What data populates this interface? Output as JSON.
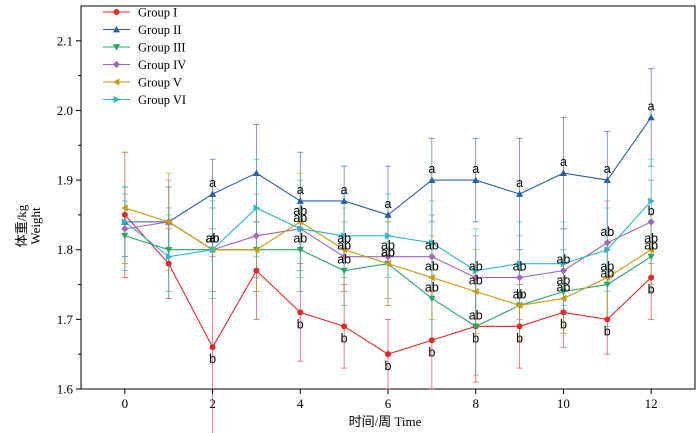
{
  "chart_data": {
    "type": "line",
    "xlabel": "时间/周 Time",
    "ylabel_line1": "体重/kg",
    "ylabel_line2": "Weight",
    "xlim": [
      -1,
      13
    ],
    "ylim": [
      1.6,
      2.15
    ],
    "xticks": [
      0,
      2,
      4,
      6,
      8,
      10,
      12
    ],
    "yticks": [
      1.6,
      1.7,
      1.8,
      1.9,
      2.0,
      2.1
    ],
    "ytick_labels": [
      "1.6",
      "1.7",
      "1.8",
      "1.9",
      "2.0",
      "2.1"
    ],
    "x": [
      0,
      1,
      2,
      3,
      4,
      5,
      6,
      7,
      8,
      9,
      10,
      11,
      12
    ],
    "legend_position": "top-left",
    "grid": false,
    "series": [
      {
        "name": "Group I",
        "color": "#e8292c",
        "marker": "circle",
        "values": [
          1.85,
          1.78,
          1.66,
          1.77,
          1.71,
          1.69,
          1.65,
          1.67,
          1.69,
          1.69,
          1.71,
          1.7,
          1.76
        ],
        "errors": [
          0.09,
          0.05,
          0.13,
          0.07,
          0.07,
          0.06,
          0.05,
          0.07,
          0.08,
          0.06,
          0.05,
          0.05,
          0.06
        ],
        "labels": [
          "",
          "",
          "b",
          "",
          "b",
          "b",
          "b",
          "b",
          "b",
          "b",
          "b",
          "b",
          "b"
        ]
      },
      {
        "name": "Group II",
        "color": "#2d5fa8",
        "marker": "triangle-up",
        "values": [
          1.84,
          1.84,
          1.88,
          1.91,
          1.87,
          1.87,
          1.85,
          1.9,
          1.9,
          1.88,
          1.91,
          1.9,
          1.99
        ],
        "errors": [
          0.05,
          0.05,
          0.05,
          0.07,
          0.07,
          0.05,
          0.07,
          0.06,
          0.06,
          0.08,
          0.08,
          0.07,
          0.07
        ],
        "labels": [
          "",
          "",
          "a",
          "",
          "a",
          "a",
          "a",
          "a",
          "a",
          "a",
          "a",
          "a",
          "a"
        ]
      },
      {
        "name": "Group III",
        "color": "#2aa66a",
        "marker": "triangle-down",
        "values": [
          1.82,
          1.8,
          1.8,
          1.8,
          1.8,
          1.77,
          1.78,
          1.73,
          1.69,
          1.72,
          1.74,
          1.75,
          1.79
        ],
        "errors": [
          0.05,
          0.06,
          0.07,
          0.06,
          0.06,
          0.05,
          0.06,
          0.06,
          0.07,
          0.05,
          0.06,
          0.06,
          0.05
        ],
        "labels": [
          "",
          "",
          "a",
          "",
          "ab",
          "ab",
          "ab",
          "ab",
          "ab",
          "ab",
          "ab",
          "ab",
          "ab"
        ]
      },
      {
        "name": "Group IV",
        "color": "#a065b8",
        "marker": "diamond",
        "values": [
          1.83,
          1.84,
          1.8,
          1.82,
          1.83,
          1.79,
          1.79,
          1.79,
          1.76,
          1.76,
          1.77,
          1.81,
          1.84
        ],
        "errors": [
          0.05,
          0.06,
          0.06,
          0.06,
          0.06,
          0.05,
          0.06,
          0.06,
          0.06,
          0.06,
          0.06,
          0.06,
          0.06
        ],
        "labels": [
          "",
          "",
          "ab",
          "",
          "ab",
          "ab",
          "ab",
          "ab",
          "ab",
          "ab",
          "ab",
          "ab",
          "b"
        ]
      },
      {
        "name": "Group V",
        "color": "#c99a10",
        "marker": "triangle-left",
        "values": [
          1.86,
          1.84,
          1.8,
          1.8,
          1.84,
          1.8,
          1.78,
          1.76,
          1.74,
          1.72,
          1.73,
          1.76,
          1.8
        ],
        "errors": [
          0.08,
          0.07,
          0.06,
          0.06,
          0.07,
          0.06,
          0.06,
          0.06,
          0.06,
          0.05,
          0.05,
          0.06,
          0.05
        ],
        "labels": [
          "",
          "",
          "ab",
          "",
          "ab",
          "ab",
          "ab",
          "ab",
          "ab",
          "b",
          "ab",
          "ab",
          "ab"
        ]
      },
      {
        "name": "Group VI",
        "color": "#2bb8c8",
        "marker": "triangle-right",
        "values": [
          1.84,
          1.79,
          1.8,
          1.86,
          1.83,
          1.82,
          1.82,
          1.81,
          1.77,
          1.78,
          1.78,
          1.8,
          1.87
        ],
        "errors": [
          0.05,
          0.06,
          0.06,
          0.07,
          0.07,
          0.06,
          0.06,
          0.06,
          0.06,
          0.06,
          0.06,
          0.06,
          0.06
        ],
        "labels": [
          "",
          "",
          "",
          "",
          "",
          "",
          "",
          "",
          "",
          "",
          "",
          "",
          ""
        ]
      }
    ]
  }
}
